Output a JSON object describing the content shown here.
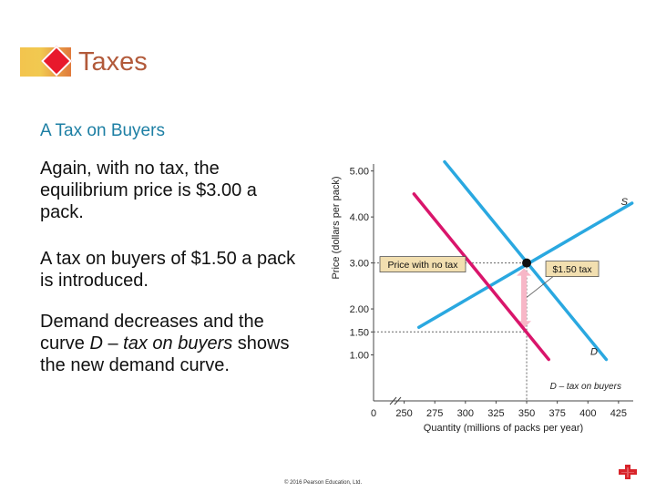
{
  "slide": {
    "title": "Taxes",
    "subtitle": "A Tax on Buyers",
    "paragraphs": [
      "Again, with no tax, the equilibrium price is $3.00 a pack.",
      "A tax on buyers of $1.50 a pack is introduced.",
      "Demand decreases and the curve D – tax on buyers shows the new demand curve."
    ],
    "copyright": "© 2016 Pearson Education, Ltd."
  },
  "colors": {
    "supply": "#2aa8e0",
    "demand": "#2aa8e0",
    "new_demand": "#d9156b",
    "title": "#b25a3a",
    "subtitle": "#1d7fa4",
    "tax_arrow": "#f7b7c7",
    "label_box": "#f2dfb0"
  },
  "icons": [
    "diamond-icon",
    "pearson-plus-icon"
  ],
  "chart_data": {
    "type": "line",
    "title": "",
    "xlabel": "Quantity (millions of packs per year)",
    "ylabel": "Price (dollars per pack)",
    "xlim": [
      225,
      437
    ],
    "ylim": [
      0,
      5.35
    ],
    "x_ticks": [
      0,
      250,
      275,
      300,
      325,
      350,
      375,
      400,
      425
    ],
    "x_tick_labels": [
      "0",
      "250",
      "275",
      "300",
      "325",
      "350",
      "375",
      "400",
      "425"
    ],
    "y_ticks": [
      1.0,
      1.5,
      2.0,
      3.0,
      4.0,
      5.0
    ],
    "y_tick_labels": [
      "1.00",
      "1.50",
      "2.00",
      "3.00",
      "4.00",
      "5.00"
    ],
    "axis_break": true,
    "series": [
      {
        "name": "S",
        "points": [
          [
            262,
            1.6
          ],
          [
            436,
            4.3
          ]
        ]
      },
      {
        "name": "D",
        "points": [
          [
            283,
            5.2
          ],
          [
            415,
            0.9
          ]
        ]
      },
      {
        "name": "D – tax on buyers",
        "points": [
          [
            258,
            4.5
          ],
          [
            368,
            0.9
          ]
        ]
      }
    ],
    "equilibrium": {
      "x": 350,
      "y": 3.0
    },
    "tax_arrow": {
      "x": 350,
      "from": 3.0,
      "to": 1.5
    },
    "annotations": [
      {
        "text": "Price with no tax",
        "x": 350,
        "y": 3.0
      },
      {
        "text": "$1.50 tax",
        "x": 350,
        "y": 2.25
      }
    ]
  }
}
